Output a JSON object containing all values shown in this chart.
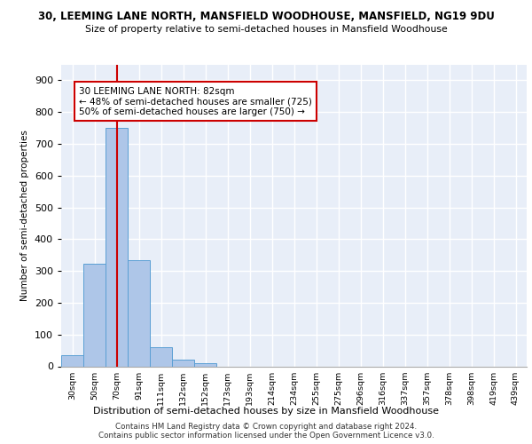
{
  "title1": "30, LEEMING LANE NORTH, MANSFIELD WOODHOUSE, MANSFIELD, NG19 9DU",
  "title2": "Size of property relative to semi-detached houses in Mansfield Woodhouse",
  "xlabel": "Distribution of semi-detached houses by size in Mansfield Woodhouse",
  "ylabel": "Number of semi-detached properties",
  "categories": [
    "30sqm",
    "50sqm",
    "70sqm",
    "91sqm",
    "111sqm",
    "132sqm",
    "152sqm",
    "173sqm",
    "193sqm",
    "214sqm",
    "234sqm",
    "255sqm",
    "275sqm",
    "296sqm",
    "316sqm",
    "337sqm",
    "357sqm",
    "378sqm",
    "398sqm",
    "419sqm",
    "439sqm"
  ],
  "values": [
    35,
    323,
    750,
    333,
    60,
    22,
    11,
    0,
    0,
    0,
    0,
    0,
    0,
    0,
    0,
    0,
    0,
    0,
    0,
    0,
    0
  ],
  "bar_color": "#aec6e8",
  "bar_edge_color": "#5a9fd4",
  "vline_x": 2,
  "vline_color": "#cc0000",
  "annotation_title": "30 LEEMING LANE NORTH: 82sqm",
  "annotation_line1": "← 48% of semi-detached houses are smaller (725)",
  "annotation_line2": "50% of semi-detached houses are larger (750) →",
  "annotation_box_color": "#ffffff",
  "annotation_edge_color": "#cc0000",
  "ylim": [
    0,
    950
  ],
  "yticks": [
    0,
    100,
    200,
    300,
    400,
    500,
    600,
    700,
    800,
    900
  ],
  "footer1": "Contains HM Land Registry data © Crown copyright and database right 2024.",
  "footer2": "Contains public sector information licensed under the Open Government Licence v3.0.",
  "bg_color": "#e8eef8",
  "grid_color": "#ffffff"
}
